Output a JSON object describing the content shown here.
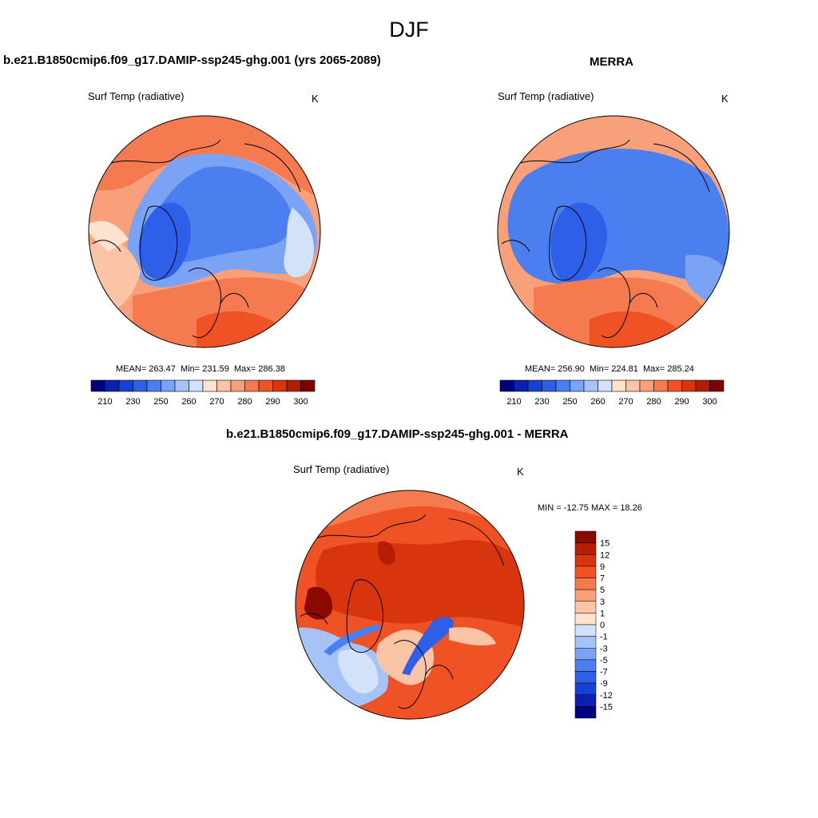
{
  "main_title": "DJF",
  "left_panel": {
    "title": "b.e21.B1850cmip6.f09_g17.DAMIP-ssp245-ghg.001 (yrs 2065-2089)",
    "variable": "Surf Temp (radiative)",
    "units": "K",
    "stats": {
      "mean": "263.47",
      "min": "231.59",
      "max": "286.38"
    }
  },
  "right_panel": {
    "title": "MERRA",
    "variable": "Surf Temp (radiative)",
    "units": "K",
    "stats": {
      "mean": "256.90",
      "min": "224.81",
      "max": "285.24"
    }
  },
  "diff_panel": {
    "title": "b.e21.B1850cmip6.f09_g17.DAMIP-ssp245-ghg.001 - MERRA",
    "variable": "Surf Temp (radiative)",
    "units": "K",
    "minmax": "MIN = -12.75 MAX =  18.26"
  },
  "colorbar_abs": {
    "tick_labels": [
      "210",
      "230",
      "250",
      "260",
      "270",
      "280",
      "290",
      "300"
    ],
    "colors": [
      "#00007f",
      "#0a20b0",
      "#1740d8",
      "#2e5fe8",
      "#4b7ff0",
      "#7aa2f5",
      "#a6c3f8",
      "#d2e2fb",
      "#fde2cf",
      "#fbc4a6",
      "#f7a07a",
      "#f57a4f",
      "#ef5225",
      "#d8340e",
      "#b31d06",
      "#7f0000"
    ]
  },
  "colorbar_diff": {
    "tick_labels": [
      "15",
      "12",
      "9",
      "7",
      "5",
      "3",
      "1",
      "0",
      "-1",
      "-3",
      "-5",
      "-7",
      "-9",
      "-12",
      "-15"
    ],
    "colors": [
      "#8b0a00",
      "#b51e05",
      "#d8340e",
      "#ef5225",
      "#f57a4f",
      "#f7a07a",
      "#fbc4a6",
      "#fde2cf",
      "#d2e2fb",
      "#a6c3f8",
      "#7aa2f5",
      "#4b7ff0",
      "#2e5fe8",
      "#1740d8",
      "#0a20b0",
      "#00007f"
    ]
  }
}
